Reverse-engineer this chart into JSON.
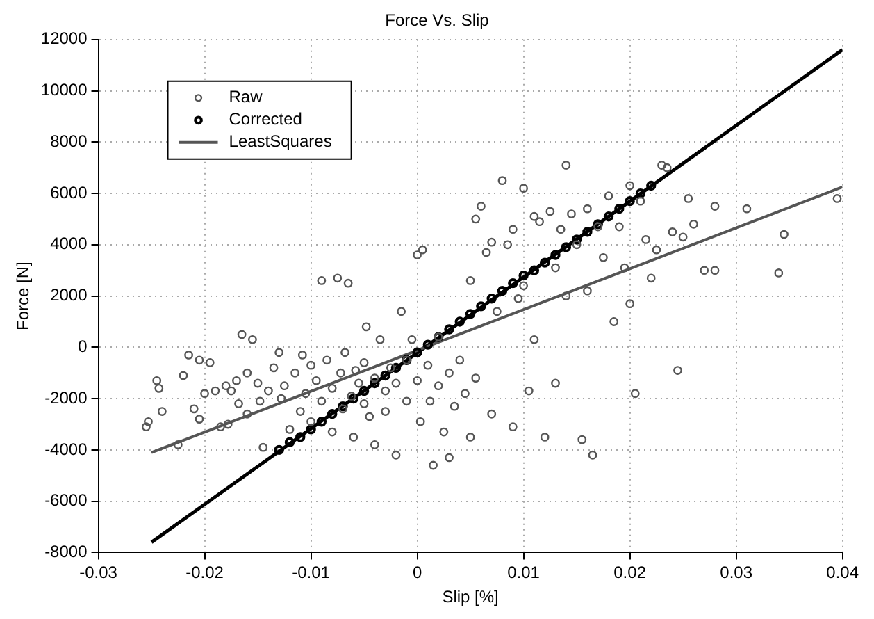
{
  "chart_data": {
    "type": "scatter",
    "title": "Force Vs. Slip",
    "xlabel": "Slip [%]",
    "ylabel": "Force [N]",
    "xlim": [
      -0.03,
      0.04
    ],
    "xticks": [
      -0.03,
      -0.02,
      -0.01,
      0,
      0.01,
      0.02,
      0.03,
      0.04
    ],
    "ylim": [
      -8000,
      12000
    ],
    "yticks": [
      -8000,
      -6000,
      -4000,
      -2000,
      0,
      2000,
      4000,
      6000,
      8000,
      10000,
      12000
    ],
    "grid": true,
    "legend": "top left",
    "marker": "circle",
    "series": [
      {
        "name": "Raw",
        "color": "#555555",
        "x": [
          -0.0255,
          -0.0253,
          -0.0245,
          -0.0243,
          -0.024,
          -0.0225,
          -0.022,
          -0.0215,
          -0.021,
          -0.0205,
          -0.0205,
          -0.02,
          -0.0195,
          -0.019,
          -0.0185,
          -0.018,
          -0.0178,
          -0.0175,
          -0.017,
          -0.0168,
          -0.0165,
          -0.016,
          -0.016,
          -0.0155,
          -0.015,
          -0.0148,
          -0.0145,
          -0.014,
          -0.0135,
          -0.013,
          -0.0128,
          -0.0125,
          -0.012,
          -0.0115,
          -0.011,
          -0.0108,
          -0.0105,
          -0.01,
          -0.01,
          -0.0095,
          -0.009,
          -0.009,
          -0.0085,
          -0.008,
          -0.008,
          -0.0075,
          -0.0072,
          -0.007,
          -0.0068,
          -0.0065,
          -0.0062,
          -0.006,
          -0.0058,
          -0.0055,
          -0.005,
          -0.005,
          -0.0048,
          -0.0045,
          -0.004,
          -0.004,
          -0.0035,
          -0.003,
          -0.003,
          -0.0025,
          -0.002,
          -0.002,
          -0.0015,
          -0.001,
          -0.001,
          -0.0005,
          0,
          0,
          0.0003,
          0.0005,
          0.001,
          0.0012,
          0.0015,
          0.002,
          0.002,
          0.0025,
          0.003,
          0.003,
          0.0035,
          0.004,
          0.0045,
          0.005,
          0.005,
          0.0055,
          0.0055,
          0.006,
          0.0065,
          0.007,
          0.007,
          0.0075,
          0.008,
          0.0085,
          0.009,
          0.009,
          0.0095,
          0.01,
          0.01,
          0.0105,
          0.011,
          0.011,
          0.0115,
          0.012,
          0.0125,
          0.013,
          0.013,
          0.0135,
          0.014,
          0.014,
          0.0145,
          0.015,
          0.0155,
          0.016,
          0.016,
          0.0165,
          0.017,
          0.0175,
          0.018,
          0.0185,
          0.019,
          0.0195,
          0.02,
          0.02,
          0.0205,
          0.021,
          0.0215,
          0.022,
          0.0225,
          0.023,
          0.0235,
          0.024,
          0.0245,
          0.025,
          0.0255,
          0.026,
          0.027,
          0.028,
          0.028,
          0.031,
          0.034,
          0.0345,
          0.0395
        ],
        "values": [
          -3100,
          -2900,
          -1300,
          -1600,
          -2500,
          -3800,
          -1100,
          -300,
          -2400,
          -2800,
          -500,
          -1800,
          -600,
          -1700,
          -3100,
          -1500,
          -3000,
          -1700,
          -1300,
          -2200,
          500,
          -1000,
          -2600,
          300,
          -1400,
          -2100,
          -3900,
          -1700,
          -800,
          -200,
          -2000,
          -1500,
          -3200,
          -1000,
          -2500,
          -300,
          -1800,
          -700,
          -2900,
          -1300,
          2600,
          -2100,
          -500,
          -1600,
          -3300,
          2700,
          -1000,
          -2400,
          -200,
          2500,
          -1900,
          -3500,
          -900,
          -1400,
          -2200,
          -600,
          800,
          -2700,
          -1200,
          -3800,
          300,
          -1700,
          -2500,
          -800,
          -1400,
          -4200,
          1400,
          -2100,
          -500,
          300,
          -1300,
          3600,
          -2900,
          3800,
          -700,
          -2100,
          -4600,
          -1500,
          400,
          -3300,
          -1000,
          -4300,
          -2300,
          -500,
          -1800,
          2600,
          -3500,
          -1200,
          5000,
          5500,
          3700,
          4100,
          -2600,
          1400,
          6500,
          4000,
          4600,
          -3100,
          1900,
          6200,
          2400,
          -1700,
          5100,
          300,
          4900,
          -3500,
          5300,
          3100,
          -1400,
          4600,
          7100,
          2000,
          5200,
          4000,
          -3600,
          5400,
          2200,
          -4200,
          4700,
          3500,
          5900,
          1000,
          4700,
          3100,
          6300,
          1700,
          -1800,
          5700,
          4200,
          2700,
          3800,
          7100,
          7000,
          4500,
          -900,
          4300,
          5800,
          4800,
          3000,
          5500,
          3000,
          5400,
          2900,
          4400,
          5800
        ]
      },
      {
        "name": "Corrected",
        "color": "#000000",
        "x": [
          -0.013,
          -0.012,
          -0.011,
          -0.01,
          -0.009,
          -0.008,
          -0.007,
          -0.006,
          -0.005,
          -0.004,
          -0.003,
          -0.002,
          -0.001,
          0,
          0.001,
          0.002,
          0.003,
          0.004,
          0.005,
          0.006,
          0.007,
          0.008,
          0.009,
          0.01,
          0.011,
          0.012,
          0.013,
          0.014,
          0.015,
          0.016,
          0.017,
          0.018,
          0.019,
          0.02,
          0.021,
          0.022
        ],
        "values": [
          -4000,
          -3700,
          -3500,
          -3200,
          -2900,
          -2600,
          -2300,
          -2000,
          -1700,
          -1400,
          -1100,
          -800,
          -500,
          -200,
          100,
          400,
          700,
          1000,
          1300,
          1600,
          1900,
          2200,
          2500,
          2800,
          3000,
          3300,
          3600,
          3900,
          4200,
          4500,
          4800,
          5100,
          5400,
          5700,
          6000,
          6300
        ]
      },
      {
        "name": "LeastSquares",
        "type": "line",
        "marker": "none",
        "color": "#555555",
        "x": [
          -0.025,
          0.04
        ],
        "values": [
          -4100,
          6250
        ]
      },
      {
        "type": "line",
        "marker": "none",
        "color": "#000000",
        "x": [
          -0.025,
          0.04
        ],
        "values": [
          -7600,
          11600
        ]
      }
    ]
  }
}
